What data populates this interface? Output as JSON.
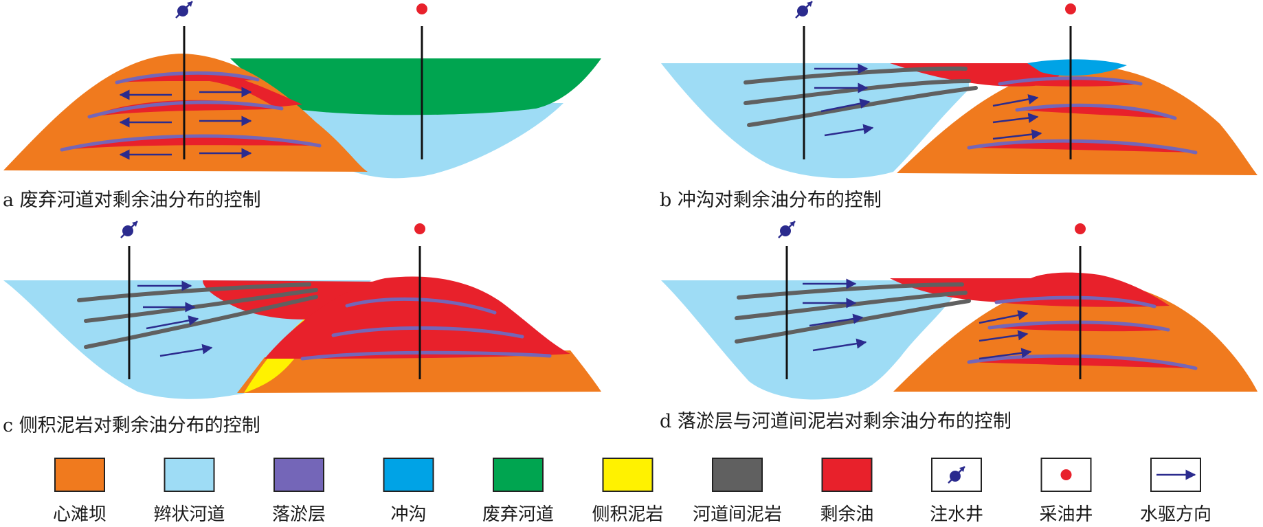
{
  "colors": {
    "heart_bar": "#F07A1E",
    "braided_channel": "#9EDCF5",
    "silt_layer": "#7466B8",
    "scour": "#00A3E6",
    "abandoned_channel": "#00A550",
    "lateral_mudstone": "#FFF200",
    "interchannel_mudstone": "#606060",
    "remaining_oil": "#E8212B",
    "injector": "#2B2B8E",
    "producer": "#E8212B",
    "arrow": "#2B2B8E",
    "well_line": "#111111"
  },
  "panels": {
    "a": {
      "caption": "a 废弃河道对剩余油分布的控制"
    },
    "b": {
      "caption": "b 冲沟对剩余油分布的控制"
    },
    "c": {
      "caption": "c 侧积泥岩对剩余油分布的控制"
    },
    "d": {
      "caption": "d 落淤层与河道间泥岩对剩余油分布的控制"
    }
  },
  "legend": [
    {
      "label": "心滩坝",
      "kind": "swatch",
      "color": "#F07A1E"
    },
    {
      "label": "辫状河道",
      "kind": "swatch",
      "color": "#9EDCF5"
    },
    {
      "label": "落淤层",
      "kind": "swatch",
      "color": "#7466B8"
    },
    {
      "label": "冲沟",
      "kind": "swatch",
      "color": "#00A3E6"
    },
    {
      "label": "废弃河道",
      "kind": "swatch",
      "color": "#00A550"
    },
    {
      "label": "侧积泥岩",
      "kind": "swatch",
      "color": "#FFF200"
    },
    {
      "label": "河道间泥岩",
      "kind": "swatch",
      "color": "#606060"
    },
    {
      "label": "剩余油",
      "kind": "swatch",
      "color": "#E8212B"
    },
    {
      "label": "注水井",
      "kind": "injector-icon"
    },
    {
      "label": "采油井",
      "kind": "producer-icon"
    },
    {
      "label": "水驱方向",
      "kind": "arrow-icon"
    }
  ]
}
